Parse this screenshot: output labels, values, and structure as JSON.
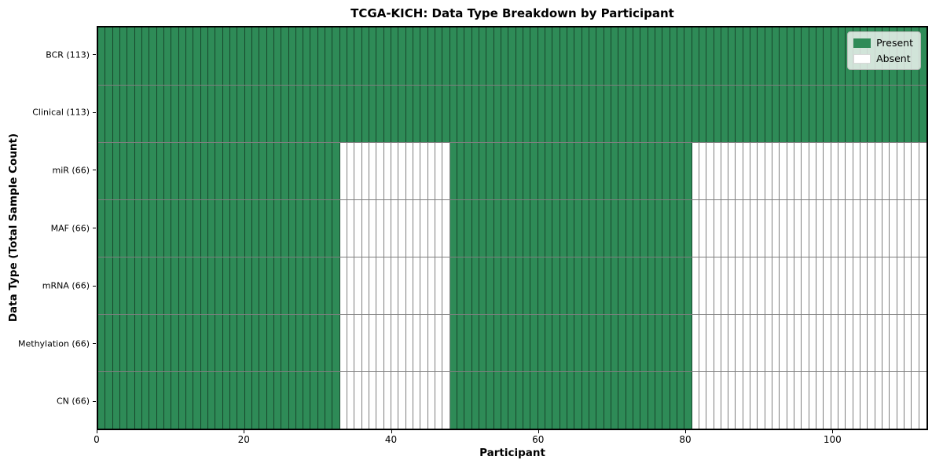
{
  "title": "TCGA-KICH: Data Type Breakdown by Participant",
  "colors": {
    "present": "#2e8b57",
    "absent": "#ffffff",
    "cell_edge": "rgba(0,0,0,0.5)",
    "spine": "#000000",
    "background": "#ffffff"
  },
  "legend": {
    "items": [
      {
        "label": "Present",
        "color": "#2e8b57"
      },
      {
        "label": "Absent",
        "color": "#ffffff"
      }
    ],
    "position": "upper right"
  },
  "chart_data": {
    "type": "heatmap",
    "title": "TCGA-KICH: Data Type Breakdown by Participant",
    "xlabel": "Participant",
    "ylabel": "Data Type (Total Sample Count)",
    "n_participants": 113,
    "xlim": [
      0,
      113
    ],
    "x_ticks": [
      0,
      20,
      40,
      60,
      80,
      100
    ],
    "x_tick_labels": [
      "0",
      "20",
      "40",
      "60",
      "80",
      "100"
    ],
    "grid": false,
    "legend_position": "upper right",
    "legend": [
      {
        "label": "Present",
        "color": "#2e8b57"
      },
      {
        "label": "Absent",
        "color": "#ffffff"
      }
    ],
    "rows": [
      {
        "label": "BCR (113)",
        "data_type": "BCR",
        "present_count": 113,
        "present_ranges": [
          [
            0,
            112
          ]
        ]
      },
      {
        "label": "Clinical (113)",
        "data_type": "Clinical",
        "present_count": 113,
        "present_ranges": [
          [
            0,
            112
          ]
        ]
      },
      {
        "label": "miR (66)",
        "data_type": "miR",
        "present_count": 66,
        "present_ranges": [
          [
            0,
            32
          ],
          [
            48,
            80
          ]
        ]
      },
      {
        "label": "MAF (66)",
        "data_type": "MAF",
        "present_count": 66,
        "present_ranges": [
          [
            0,
            32
          ],
          [
            48,
            80
          ]
        ]
      },
      {
        "label": "mRNA (66)",
        "data_type": "mRNA",
        "present_count": 66,
        "present_ranges": [
          [
            0,
            32
          ],
          [
            48,
            80
          ]
        ]
      },
      {
        "label": "Methylation (66)",
        "data_type": "Methylation",
        "present_count": 66,
        "present_ranges": [
          [
            0,
            32
          ],
          [
            48,
            80
          ]
        ]
      },
      {
        "label": "CN (66)",
        "data_type": "CN",
        "present_count": 66,
        "present_ranges": [
          [
            0,
            32
          ],
          [
            48,
            80
          ]
        ]
      }
    ]
  }
}
